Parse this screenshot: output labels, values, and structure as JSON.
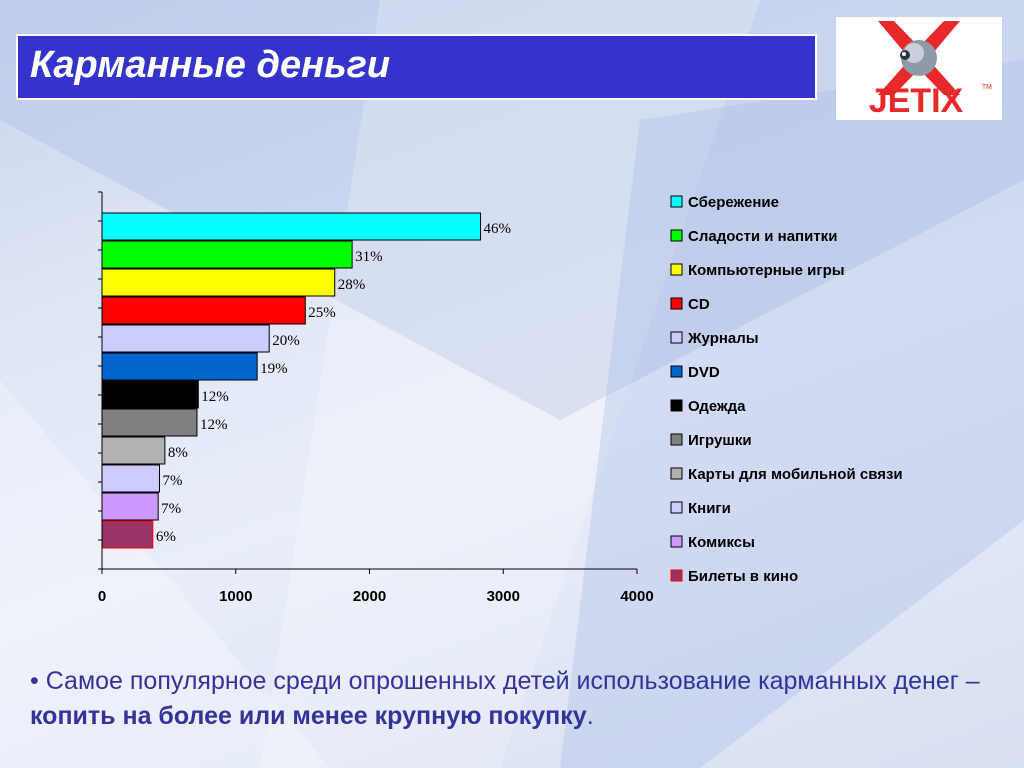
{
  "slide": {
    "title": "Карманные деньги",
    "logo_text": "JETIX",
    "logo_tm": "TM"
  },
  "bullet": {
    "marker": "•",
    "text_start": " Самое популярное среди опрошенных детей использование карманных денег – ",
    "text_bold": "копить на более или менее крупную покупку",
    "text_end": "."
  },
  "colors": {
    "title_bg": "#3434cc",
    "logo_red": "#e8292b",
    "bullet_text": "#333399"
  },
  "chart_data": {
    "type": "bar",
    "orientation": "horizontal",
    "title": "",
    "xlabel": "",
    "ylabel": "",
    "xlim": [
      0,
      4000
    ],
    "x_ticks": [
      "0",
      "1000",
      "2000",
      "3000",
      "4000"
    ],
    "grid": false,
    "legend_position": "right",
    "categories": [
      "Сбережение",
      "Сладости и напитки",
      "Компьютерные игры",
      "CD",
      "Журналы",
      "DVD",
      "Одежда",
      "Игрушки",
      "Карты для мобильной связи",
      "Книги",
      "Комиксы",
      "Билеты в кино"
    ],
    "values": [
      2830,
      1870,
      1740,
      1520,
      1250,
      1160,
      720,
      710,
      470,
      430,
      420,
      380
    ],
    "labels": [
      "46%",
      "31%",
      "28%",
      "25%",
      "20%",
      "19%",
      "12%",
      "12%",
      "8%",
      "7%",
      "7%",
      "6%"
    ],
    "colors": [
      "#00ffff",
      "#00ff00",
      "#ffff00",
      "#ff0000",
      "#ccccff",
      "#0066cc",
      "#000000",
      "#808080",
      "#b2b2b2",
      "#ccccff",
      "#cc99ff",
      "#993366"
    ],
    "edge_colors": [
      "#000000",
      "#000000",
      "#000000",
      "#000000",
      "#000000",
      "#000000",
      "#000000",
      "#000000",
      "#000000",
      "#000000",
      "#000000",
      "#ff0000"
    ]
  }
}
